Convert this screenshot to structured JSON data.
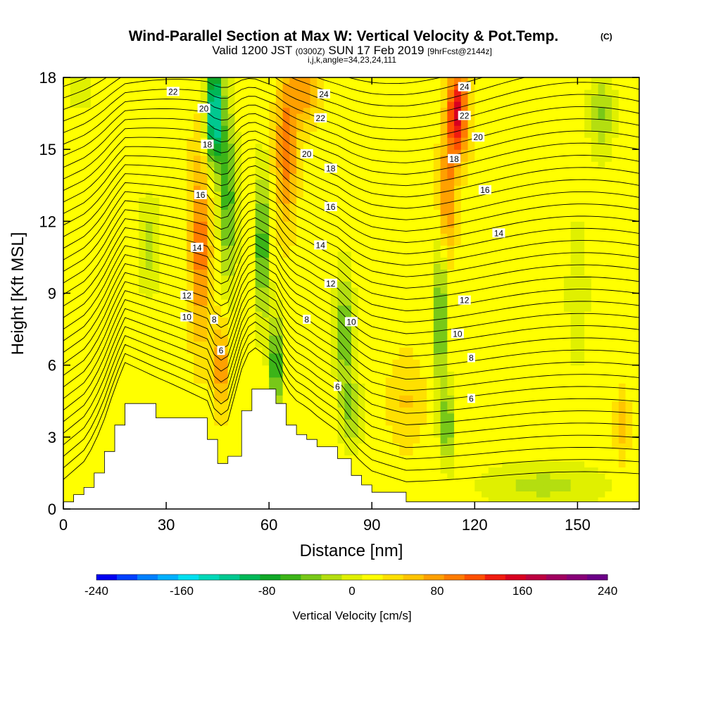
{
  "chart_data": {
    "type": "heatmap",
    "title": "Wind-Parallel Section at Max W: Vertical Velocity & Pot.Temp.",
    "title_mark": "(C)",
    "subtitle_parts": [
      "Valid 1200 JST ",
      "(0300Z)",
      " SUN 17 Feb 2019 ",
      "[9hrFcst@2144z]"
    ],
    "subtitle2": "i,j,k,angle=34,23,24,111",
    "xlabel": "Distance [nm]",
    "ylabel": "Height [Kft MSL]",
    "xlim": [
      0,
      168
    ],
    "ylim": [
      0,
      18
    ],
    "xticks": [
      0,
      30,
      60,
      90,
      120,
      150
    ],
    "yticks": [
      0,
      3,
      6,
      9,
      12,
      15,
      18
    ],
    "colorbar": {
      "label": "Vertical Velocity [cm/s]",
      "range": [
        -240,
        240
      ],
      "tick_labels": [
        "-240",
        "-160",
        "-80",
        "0",
        "80",
        "160",
        "240"
      ],
      "tick_values": [
        -240,
        -160,
        -80,
        0,
        80,
        160,
        240
      ],
      "colors": [
        "#0000f0",
        "#0040ff",
        "#0080ff",
        "#00b0ff",
        "#00e0f0",
        "#00d8b8",
        "#00c890",
        "#00b858",
        "#10a828",
        "#3cb418",
        "#78c818",
        "#b4de10",
        "#e0f000",
        "#ffff00",
        "#ffe000",
        "#ffc400",
        "#ffa000",
        "#ff7c00",
        "#ff5000",
        "#f01c10",
        "#d80020",
        "#bc0040",
        "#a00060",
        "#880078",
        "#6c0088"
      ]
    },
    "background_w": 20,
    "w_features": [
      {
        "x": 44,
        "y": 16.5,
        "w": -160,
        "sx": 2.5,
        "sy": 2.2
      },
      {
        "x": 48,
        "y": 13,
        "w": -80,
        "sx": 2.5,
        "sy": 3.5
      },
      {
        "x": 58,
        "y": 11,
        "w": -90,
        "sx": 2.0,
        "sy": 3.0
      },
      {
        "x": 62,
        "y": 6,
        "w": -100,
        "sx": 1.8,
        "sy": 2.0
      },
      {
        "x": 40,
        "y": 11,
        "w": 80,
        "sx": 3.0,
        "sy": 4.0
      },
      {
        "x": 46,
        "y": 6,
        "w": 70,
        "sx": 2.0,
        "sy": 1.8
      },
      {
        "x": 65,
        "y": 15,
        "w": 80,
        "sx": 3.0,
        "sy": 3.0
      },
      {
        "x": 70,
        "y": 17.5,
        "w": 60,
        "sx": 4.0,
        "sy": 1.5
      },
      {
        "x": 115,
        "y": 16.5,
        "w": 130,
        "sx": 3.0,
        "sy": 2.0
      },
      {
        "x": 112,
        "y": 13,
        "w": 70,
        "sx": 2.5,
        "sy": 2.5
      },
      {
        "x": 82,
        "y": 7.5,
        "w": -70,
        "sx": 2.5,
        "sy": 2.5
      },
      {
        "x": 84,
        "y": 4,
        "w": -50,
        "sx": 3.0,
        "sy": 1.5
      },
      {
        "x": 110,
        "y": 8,
        "w": -80,
        "sx": 2.0,
        "sy": 3.0
      },
      {
        "x": 112,
        "y": 3.5,
        "w": -70,
        "sx": 2.0,
        "sy": 1.5
      },
      {
        "x": 25,
        "y": 11,
        "w": -40,
        "sx": 3.0,
        "sy": 2.0
      },
      {
        "x": 157,
        "y": 16.5,
        "w": -50,
        "sx": 3.5,
        "sy": 1.8
      },
      {
        "x": 150,
        "y": 9,
        "w": -30,
        "sx": 3.0,
        "sy": 3.0
      },
      {
        "x": 5,
        "y": 17.5,
        "w": -20,
        "sx": 4.0,
        "sy": 1.0
      },
      {
        "x": 140,
        "y": 1.0,
        "w": -35,
        "sx": 18.0,
        "sy": 1.0
      },
      {
        "x": 100,
        "y": 4.5,
        "w": 30,
        "sx": 5.0,
        "sy": 2.0
      },
      {
        "x": 163,
        "y": 3.5,
        "w": 40,
        "sx": 2.0,
        "sy": 1.5
      }
    ],
    "contour_labels": [
      {
        "x": 32,
        "y": 17.4,
        "text": "22"
      },
      {
        "x": 41,
        "y": 16.7,
        "text": "20"
      },
      {
        "x": 42,
        "y": 15.2,
        "text": "18"
      },
      {
        "x": 40,
        "y": 13.1,
        "text": "16"
      },
      {
        "x": 39,
        "y": 10.9,
        "text": "14"
      },
      {
        "x": 36,
        "y": 8.9,
        "text": "12"
      },
      {
        "x": 36,
        "y": 8.0,
        "text": "10"
      },
      {
        "x": 44,
        "y": 7.9,
        "text": "8"
      },
      {
        "x": 46,
        "y": 6.6,
        "text": "6"
      },
      {
        "x": 76,
        "y": 17.3,
        "text": "24"
      },
      {
        "x": 75,
        "y": 16.3,
        "text": "22"
      },
      {
        "x": 71,
        "y": 14.8,
        "text": "20"
      },
      {
        "x": 78,
        "y": 14.2,
        "text": "18"
      },
      {
        "x": 78,
        "y": 12.6,
        "text": "16"
      },
      {
        "x": 75,
        "y": 11.0,
        "text": "14"
      },
      {
        "x": 78,
        "y": 9.4,
        "text": "12"
      },
      {
        "x": 71,
        "y": 7.9,
        "text": "8"
      },
      {
        "x": 84,
        "y": 7.8,
        "text": "10"
      },
      {
        "x": 80,
        "y": 5.1,
        "text": "6"
      },
      {
        "x": 117,
        "y": 17.6,
        "text": "24"
      },
      {
        "x": 117,
        "y": 16.4,
        "text": "22"
      },
      {
        "x": 121,
        "y": 15.5,
        "text": "20"
      },
      {
        "x": 114,
        "y": 14.6,
        "text": "18"
      },
      {
        "x": 123,
        "y": 13.3,
        "text": "16"
      },
      {
        "x": 127,
        "y": 11.5,
        "text": "14"
      },
      {
        "x": 117,
        "y": 8.7,
        "text": "12"
      },
      {
        "x": 115,
        "y": 7.3,
        "text": "10"
      },
      {
        "x": 119,
        "y": 6.3,
        "text": "8"
      },
      {
        "x": 119,
        "y": 4.6,
        "text": "6"
      }
    ],
    "terrain": [
      [
        0,
        0.3
      ],
      [
        3,
        0.6
      ],
      [
        6,
        0.9
      ],
      [
        9,
        1.5
      ],
      [
        12,
        2.4
      ],
      [
        15,
        3.5
      ],
      [
        18,
        4.4
      ],
      [
        27,
        3.8
      ],
      [
        42,
        2.9
      ],
      [
        45,
        1.9
      ],
      [
        48,
        2.2
      ],
      [
        52,
        4.1
      ],
      [
        55,
        5.0
      ],
      [
        62,
        4.4
      ],
      [
        65,
        3.5
      ],
      [
        68,
        3.1
      ],
      [
        71,
        2.9
      ],
      [
        74,
        2.6
      ],
      [
        80,
        2.1
      ],
      [
        84,
        1.4
      ],
      [
        87,
        1.0
      ],
      [
        90,
        0.7
      ],
      [
        100,
        0.3
      ],
      [
        168,
        0.3
      ]
    ]
  }
}
